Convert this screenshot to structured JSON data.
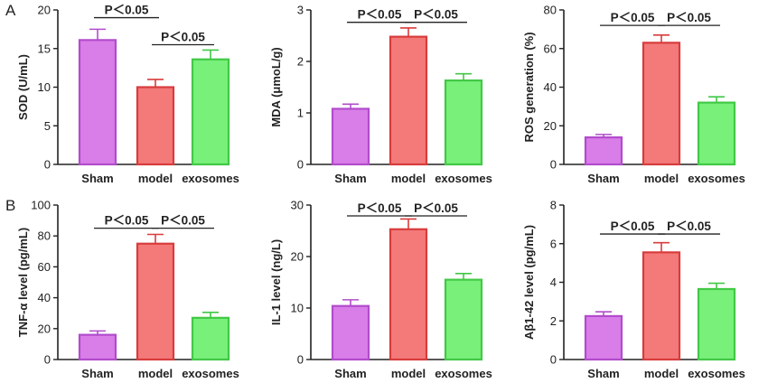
{
  "panel_labels": [
    "A",
    "B"
  ],
  "colors": {
    "Sham": {
      "fill": "#d97ee8",
      "stroke": "#b24ccc"
    },
    "model": {
      "fill": "#f47a7a",
      "stroke": "#d83c3c"
    },
    "exosomes": {
      "fill": "#78f07a",
      "stroke": "#42c846"
    }
  },
  "chart_data": [
    {
      "type": "bar",
      "ylabel": "SOD (U/mL)",
      "categories": [
        "Sham",
        "model",
        "exosomes"
      ],
      "values": [
        16.1,
        10.0,
        13.6
      ],
      "errors": [
        1.4,
        1.0,
        1.2
      ],
      "ylim": [
        0,
        20
      ],
      "yticks": [
        0,
        5,
        10,
        15,
        20
      ],
      "significance": [
        {
          "from": 0,
          "to": 1,
          "label": "P＜0.05",
          "level": 19.0
        },
        {
          "from": 1,
          "to": 2,
          "label": "P＜0.05",
          "level": 15.5
        }
      ]
    },
    {
      "type": "bar",
      "ylabel": "MDA (μmoL/g)",
      "categories": [
        "Sham",
        "model",
        "exosomes"
      ],
      "values": [
        1.08,
        2.48,
        1.63
      ],
      "errors": [
        0.09,
        0.17,
        0.13
      ],
      "ylim": [
        0,
        3
      ],
      "yticks": [
        0,
        1,
        2,
        3
      ],
      "significance": [
        {
          "from": 0,
          "to": 1,
          "label": "P＜0.05",
          "level": 2.76
        },
        {
          "from": 1,
          "to": 2,
          "label": "P＜0.05",
          "level": 2.76
        }
      ]
    },
    {
      "type": "bar",
      "ylabel": "ROS generation (%)",
      "categories": [
        "Sham",
        "model",
        "exosomes"
      ],
      "values": [
        14,
        63,
        32
      ],
      "errors": [
        1.5,
        4.0,
        3.0
      ],
      "ylim": [
        0,
        80
      ],
      "yticks": [
        0,
        20,
        40,
        60,
        80
      ],
      "significance": [
        {
          "from": 0,
          "to": 1,
          "label": "P＜0.05",
          "level": 72
        },
        {
          "from": 1,
          "to": 2,
          "label": "P＜0.05",
          "level": 72
        }
      ]
    },
    {
      "type": "bar",
      "ylabel": "TNF-α level (pg/mL)",
      "categories": [
        "Sham",
        "model",
        "exosomes"
      ],
      "values": [
        16,
        75,
        27
      ],
      "errors": [
        2.5,
        6.0,
        3.5
      ],
      "ylim": [
        0,
        100
      ],
      "yticks": [
        0,
        20,
        40,
        60,
        80,
        100
      ],
      "significance": [
        {
          "from": 0,
          "to": 1,
          "label": "P＜0.05",
          "level": 85
        },
        {
          "from": 1,
          "to": 2,
          "label": "P＜0.05",
          "level": 85
        }
      ]
    },
    {
      "type": "bar",
      "ylabel": "IL-1 level (ng/L)",
      "categories": [
        "Sham",
        "model",
        "exosomes"
      ],
      "values": [
        10.4,
        25.3,
        15.5
      ],
      "errors": [
        1.2,
        2.0,
        1.2
      ],
      "ylim": [
        0,
        30
      ],
      "yticks": [
        0,
        10,
        20,
        30
      ],
      "significance": [
        {
          "from": 0,
          "to": 1,
          "label": "P＜0.05",
          "level": 27.9
        },
        {
          "from": 1,
          "to": 2,
          "label": "P＜0.05",
          "level": 27.9
        }
      ]
    },
    {
      "type": "bar",
      "ylabel": "Aβ1-42 level (pg/mL)",
      "categories": [
        "Sham",
        "model",
        "exosomes"
      ],
      "values": [
        2.25,
        5.55,
        3.65
      ],
      "errors": [
        0.22,
        0.5,
        0.3
      ],
      "ylim": [
        0,
        8
      ],
      "yticks": [
        0,
        2,
        4,
        6,
        8
      ],
      "significance": [
        {
          "from": 0,
          "to": 1,
          "label": "P＜0.05",
          "level": 6.5
        },
        {
          "from": 1,
          "to": 2,
          "label": "P＜0.05",
          "level": 6.5
        }
      ]
    }
  ]
}
